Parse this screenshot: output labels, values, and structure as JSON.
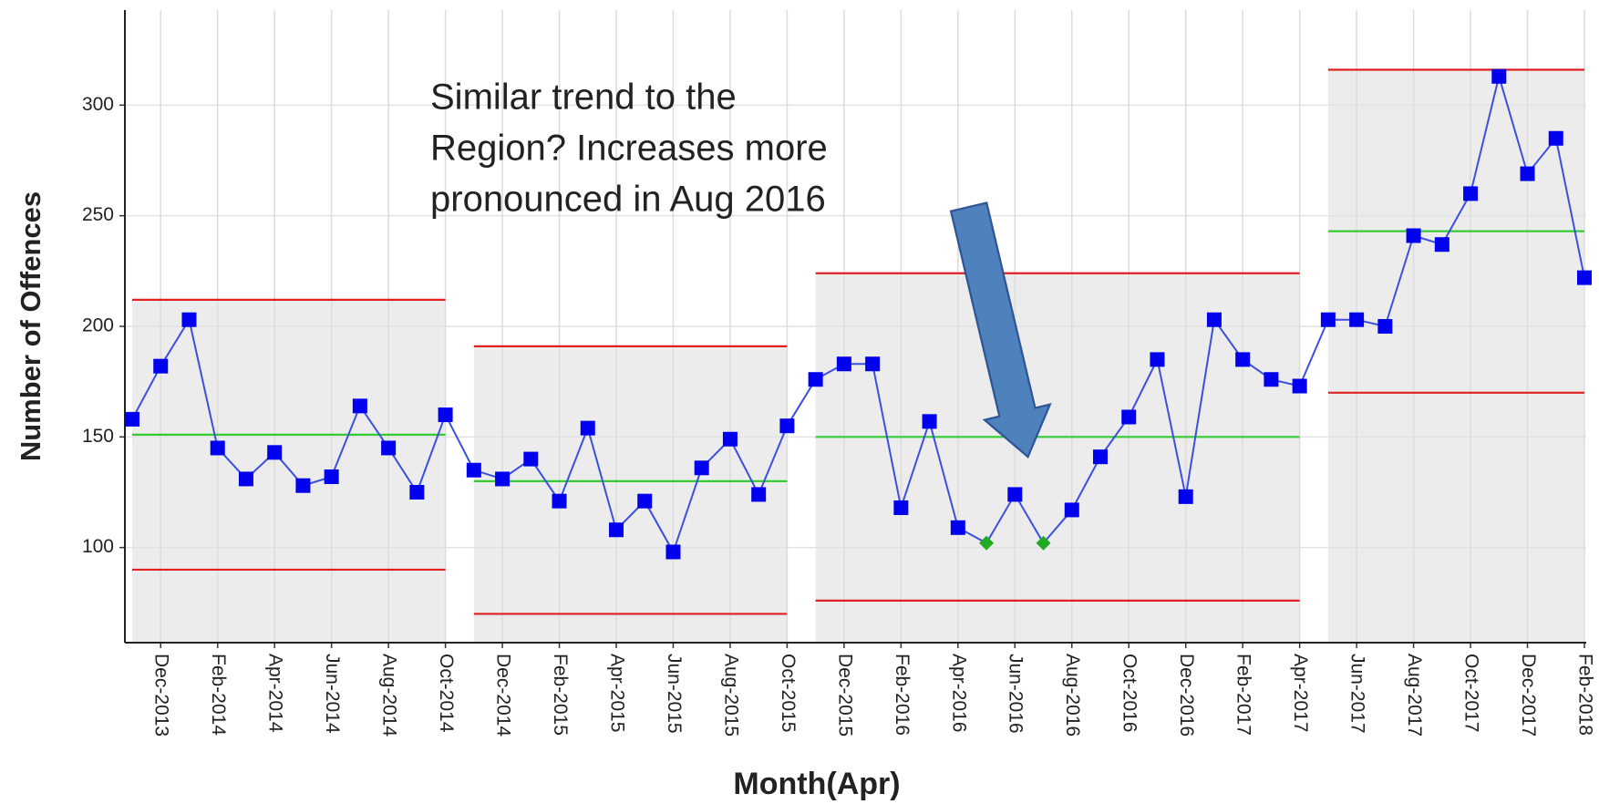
{
  "chart_data": {
    "type": "control",
    "x_label": "Month(Apr)",
    "y_label": "Number of Offences",
    "annotation": [
      "Similar trend to the",
      "Region? Increases more",
      "pronounced in Aug 2016"
    ],
    "categories": [
      null,
      "Dec-2013",
      null,
      "Feb-2014",
      null,
      "Apr-2014",
      null,
      "Jun-2014",
      null,
      "Aug-2014",
      null,
      "Oct-2014",
      null,
      "Dec-2014",
      null,
      "Feb-2015",
      null,
      "Apr-2015",
      null,
      "Jun-2015",
      null,
      "Aug-2015",
      null,
      "Oct-2015",
      null,
      "Dec-2015",
      null,
      "Feb-2016",
      null,
      "Apr-2016",
      null,
      "Jun-2016",
      null,
      "Aug-2016",
      null,
      "Oct-2016",
      null,
      "Dec-2016",
      null,
      "Feb-2017",
      null,
      "Apr-2017",
      null,
      "Jun-2017",
      null,
      "Aug-2017",
      null,
      "Oct-2017",
      null,
      "Dec-2017",
      null,
      "Feb-2018"
    ],
    "phases": [
      {
        "values": [
          158,
          182,
          203,
          145,
          131,
          143,
          128,
          132,
          164,
          145,
          125,
          160
        ],
        "mean": 151,
        "ucl": 212,
        "lcl": 90
      },
      {
        "values": [
          135,
          131,
          140,
          121,
          154,
          108,
          121,
          98,
          136,
          149,
          124,
          155
        ],
        "mean": 130,
        "ucl": 191,
        "lcl": 70
      },
      {
        "values": [
          176,
          183,
          183,
          118,
          157,
          109,
          102,
          124,
          102,
          117,
          141,
          159,
          185,
          123,
          203,
          185,
          176,
          173
        ],
        "mean": 150,
        "ucl": 224,
        "lcl": 76,
        "point_colors": [
          null,
          null,
          null,
          null,
          null,
          null,
          "#22aa22",
          null,
          "#22aa22",
          null,
          null,
          null,
          null,
          null,
          null,
          null,
          null,
          null
        ]
      },
      {
        "values": [
          203,
          203,
          200,
          241,
          237,
          260,
          313,
          269,
          285,
          222
        ],
        "mean": 243,
        "ucl": 316,
        "lcl": 170
      }
    ],
    "line_color": "#3b4fe0",
    "marker_color": "#0000ee",
    "mean_color": "#33cc33",
    "limit_color": "#e02020",
    "shade_color": "#ececec",
    "ylim": [
      57,
      343
    ],
    "yticks": [
      100,
      150,
      200,
      250,
      300
    ],
    "grid": true
  }
}
